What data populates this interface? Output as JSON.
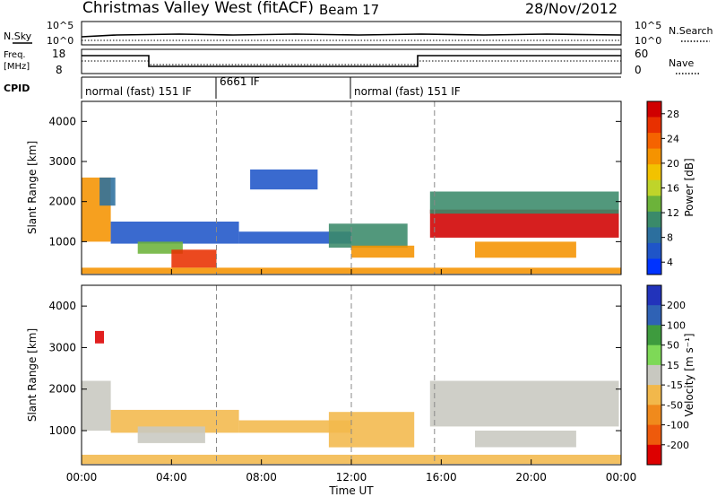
{
  "header": {
    "station": "Christmas Valley West (fitACF)",
    "beam": "Beam 17",
    "date": "28/Nov/2012"
  },
  "strip": {
    "nsky_label": "N.Sky",
    "nsky_ticks": [
      "10^5",
      "10^0"
    ],
    "nsearch_label": "N.Search",
    "nsearch_ticks": [
      "10^5",
      "10^0"
    ],
    "freq_label": "Freq.",
    "freq_unit": "[MHz]",
    "freq_ticks": [
      "18",
      "8"
    ],
    "nave_label": "Nave",
    "nave_ticks": [
      "60",
      "0"
    ],
    "cpid_label": "CPID",
    "cpid_segments": [
      "normal (fast) 151 IF",
      "6661 IF",
      "normal (fast) 151 IF"
    ]
  },
  "chart_data": [
    {
      "type": "heatmap",
      "panel": "power",
      "xlabel": "",
      "ylabel": "Slant Range [km]",
      "x_range_hours": [
        0,
        24
      ],
      "ylim": [
        180,
        4500
      ],
      "yticks": [
        "1000",
        "2000",
        "3000",
        "4000"
      ],
      "colorbar": {
        "label": "Power [dB]",
        "ticks": [
          "4",
          "8",
          "12",
          "16",
          "20",
          "24",
          "28"
        ],
        "colors": [
          "#0033ff",
          "#1f55c8",
          "#2c6f9e",
          "#3a8a6a",
          "#6cb33a",
          "#bfd42a",
          "#f2c200",
          "#f59300",
          "#f56300",
          "#e83000",
          "#d00000"
        ]
      },
      "regions": [
        {
          "t": [
            0.0,
            1.3
          ],
          "r": [
            1000,
            2600
          ],
          "v": 22
        },
        {
          "t": [
            0.8,
            1.5
          ],
          "r": [
            1900,
            2600
          ],
          "v": 8
        },
        {
          "t": [
            1.3,
            7.0
          ],
          "r": [
            950,
            1500
          ],
          "v": 6
        },
        {
          "t": [
            2.5,
            4.5
          ],
          "r": [
            700,
            1000
          ],
          "v": 14
        },
        {
          "t": [
            4.0,
            6.0
          ],
          "r": [
            350,
            800
          ],
          "v": 26
        },
        {
          "t": [
            7.0,
            12.0
          ],
          "r": [
            950,
            1250
          ],
          "v": 5
        },
        {
          "t": [
            11.0,
            14.5
          ],
          "r": [
            850,
            1450
          ],
          "v": 12
        },
        {
          "t": [
            12.0,
            14.8
          ],
          "r": [
            600,
            900
          ],
          "v": 22
        },
        {
          "t": [
            15.5,
            23.9
          ],
          "r": [
            1100,
            1800
          ],
          "v": 29
        },
        {
          "t": [
            15.5,
            23.9
          ],
          "r": [
            1700,
            2250
          ],
          "v": 10
        },
        {
          "t": [
            17.5,
            22.0
          ],
          "r": [
            600,
            1000
          ],
          "v": 20
        },
        {
          "t": [
            7.5,
            10.5
          ],
          "r": [
            2300,
            2800
          ],
          "v": 5
        },
        {
          "t": [
            0.0,
            24.0
          ],
          "r": [
            200,
            350
          ],
          "v": 20
        }
      ]
    },
    {
      "type": "heatmap",
      "panel": "velocity",
      "xlabel": "Time UT",
      "ylabel": "Slant Range [km]",
      "x_range_hours": [
        0,
        24
      ],
      "ylim": [
        180,
        4500
      ],
      "xticks": [
        "00:00",
        "04:00",
        "08:00",
        "12:00",
        "16:00",
        "20:00",
        "00:00"
      ],
      "yticks": [
        "1000",
        "2000",
        "3000",
        "4000"
      ],
      "colorbar": {
        "label": "Velocity [m s⁻¹]",
        "ticks": [
          "200",
          "100",
          "50",
          "15",
          "-15",
          "-50",
          "-100",
          "-200"
        ],
        "colors": [
          "#2233bb",
          "#2f62b5",
          "#3e9b3e",
          "#7ed957",
          "#c8c8c0",
          "#f2b84b",
          "#f08a1c",
          "#ee5a0c",
          "#dd0000"
        ]
      },
      "regions": [
        {
          "t": [
            0.0,
            1.3
          ],
          "r": [
            1000,
            2200
          ],
          "v": 0
        },
        {
          "t": [
            0.6,
            1.0
          ],
          "r": [
            3100,
            3400
          ],
          "v": -200
        },
        {
          "t": [
            1.3,
            7.0
          ],
          "r": [
            950,
            1500
          ],
          "v": -40
        },
        {
          "t": [
            2.5,
            5.5
          ],
          "r": [
            700,
            1100
          ],
          "v": 0
        },
        {
          "t": [
            7.0,
            12.0
          ],
          "r": [
            950,
            1250
          ],
          "v": -30
        },
        {
          "t": [
            11.0,
            14.8
          ],
          "r": [
            600,
            1450
          ],
          "v": -60
        },
        {
          "t": [
            15.5,
            23.9
          ],
          "r": [
            1100,
            2200
          ],
          "v": 0
        },
        {
          "t": [
            17.5,
            22.0
          ],
          "r": [
            600,
            1000
          ],
          "v": 0
        },
        {
          "t": [
            0.0,
            24.0
          ],
          "r": [
            200,
            420
          ],
          "v": -60
        }
      ]
    }
  ]
}
